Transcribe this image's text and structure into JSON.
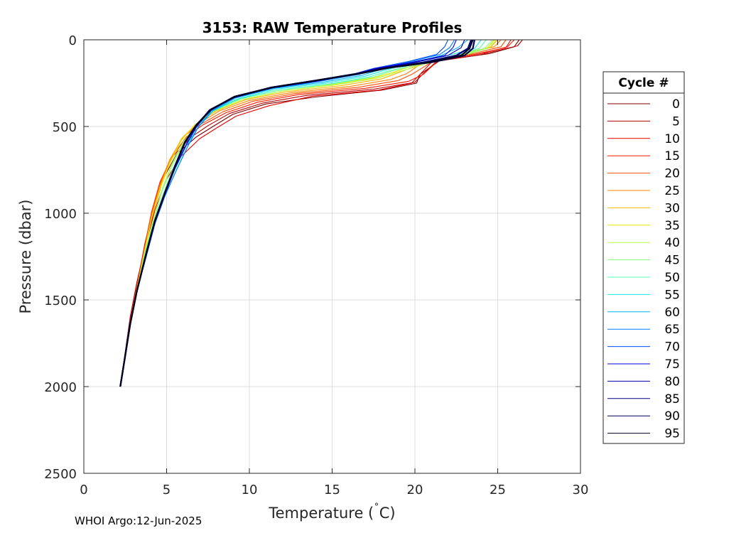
{
  "chart_data": {
    "type": "line",
    "title": "3153: RAW Temperature Profiles",
    "xlabel": "Temperature (",
    "xlabel_degree": "˚",
    "xlabel_unit": "C)",
    "ylabel": "Pressure (dbar)",
    "xlim": [
      0,
      30
    ],
    "ylim": [
      0,
      2500
    ],
    "y_reversed": true,
    "grid": true,
    "x_ticks": [
      "0",
      "5",
      "10",
      "15",
      "20",
      "25",
      "30"
    ],
    "y_ticks": [
      "0",
      "500",
      "1000",
      "1500",
      "2000",
      "2500"
    ],
    "legend": {
      "title": "Cycle #",
      "placement": "right-outside",
      "entries": [
        "0",
        "5",
        "10",
        "15",
        "20",
        "25",
        "30",
        "35",
        "40",
        "45",
        "50",
        "55",
        "60",
        "65",
        "70",
        "75",
        "80",
        "85",
        "90",
        "95"
      ],
      "colors": [
        "#800000",
        "#b30000",
        "#e60000",
        "#ff1a00",
        "#ff4d00",
        "#ff8000",
        "#ffb300",
        "#e6e600",
        "#b3ff4d",
        "#80ff80",
        "#4dffb3",
        "#1ae6e6",
        "#00b3ff",
        "#0080ff",
        "#004dff",
        "#0000e6",
        "#0000b3",
        "#000080",
        "#000050",
        "#000020"
      ]
    },
    "series": [
      {
        "x": [
          26.3,
          26.0,
          24.5,
          21.5,
          20.3,
          20.1,
          18.0,
          14.0,
          11.0,
          9.0,
          7.8,
          6.8,
          5.6,
          4.8,
          4.3,
          3.8,
          3.2,
          2.8,
          2.5,
          2.2
        ],
        "y": [
          0,
          40,
          80,
          120,
          200,
          250,
          290,
          330,
          370,
          430,
          500,
          560,
          660,
          800,
          960,
          1150,
          1400,
          1600,
          1800,
          2000
        ]
      },
      {
        "x": [
          26.5,
          26.2,
          24.0,
          21.3,
          20.4,
          20.0,
          17.5,
          13.5,
          10.8,
          8.8,
          7.5,
          6.5,
          5.4,
          4.7,
          4.2,
          3.7,
          3.2,
          2.8,
          2.5,
          2.2
        ],
        "y": [
          0,
          35,
          85,
          125,
          205,
          245,
          285,
          320,
          365,
          425,
          495,
          560,
          670,
          810,
          980,
          1170,
          1420,
          1620,
          1820,
          2000
        ]
      },
      {
        "x": [
          25.8,
          25.5,
          23.8,
          21.0,
          20.2,
          19.8,
          17.8,
          13.8,
          11.2,
          9.2,
          8.0,
          7.0,
          5.8,
          4.9,
          4.3,
          3.8,
          3.2,
          2.8,
          2.5,
          2.2
        ],
        "y": [
          0,
          45,
          80,
          130,
          210,
          250,
          290,
          325,
          380,
          440,
          510,
          570,
          680,
          820,
          980,
          1160,
          1410,
          1610,
          1810,
          2000
        ]
      },
      {
        "x": [
          26.0,
          25.6,
          24.2,
          21.4,
          20.5,
          19.6,
          17.0,
          13.0,
          10.5,
          8.6,
          7.2,
          6.2,
          5.3,
          4.6,
          4.1,
          3.7,
          3.2,
          2.8,
          2.5,
          2.2
        ],
        "y": [
          0,
          40,
          75,
          120,
          200,
          240,
          280,
          315,
          360,
          420,
          490,
          560,
          680,
          820,
          990,
          1180,
          1420,
          1620,
          1820,
          2000
        ]
      },
      {
        "x": [
          25.5,
          25.2,
          23.5,
          21.0,
          19.8,
          19.0,
          16.5,
          12.8,
          10.2,
          8.4,
          7.0,
          6.0,
          5.2,
          4.6,
          4.1,
          3.7,
          3.2,
          2.8,
          2.5,
          2.2
        ],
        "y": [
          0,
          40,
          80,
          130,
          200,
          235,
          275,
          310,
          355,
          415,
          490,
          560,
          690,
          830,
          1000,
          1190,
          1430,
          1630,
          1820,
          2000
        ]
      },
      {
        "x": [
          25.2,
          24.8,
          23.0,
          20.5,
          19.5,
          18.5,
          16.0,
          12.5,
          10.0,
          8.2,
          6.9,
          6.0,
          5.2,
          4.6,
          4.1,
          3.7,
          3.2,
          2.8,
          2.5,
          2.2
        ],
        "y": [
          0,
          40,
          80,
          130,
          195,
          230,
          270,
          305,
          350,
          410,
          485,
          560,
          690,
          840,
          1010,
          1200,
          1430,
          1630,
          1820,
          2000
        ]
      },
      {
        "x": [
          25.0,
          24.6,
          22.8,
          20.6,
          19.0,
          18.0,
          15.5,
          12.2,
          9.8,
          8.0,
          6.8,
          5.9,
          5.2,
          4.6,
          4.1,
          3.7,
          3.2,
          2.8,
          2.5,
          2.2
        ],
        "y": [
          0,
          40,
          85,
          130,
          190,
          225,
          265,
          300,
          345,
          410,
          485,
          570,
          700,
          850,
          1020,
          1200,
          1440,
          1630,
          1820,
          2000
        ]
      },
      {
        "x": [
          24.8,
          24.4,
          22.5,
          20.4,
          18.8,
          17.5,
          15.0,
          12.0,
          9.6,
          7.9,
          6.7,
          5.9,
          5.2,
          4.6,
          4.1,
          3.7,
          3.2,
          2.8,
          2.5,
          2.2
        ],
        "y": [
          0,
          45,
          90,
          130,
          185,
          220,
          260,
          295,
          345,
          410,
          490,
          580,
          710,
          860,
          1030,
          1210,
          1440,
          1630,
          1820,
          2000
        ]
      },
      {
        "x": [
          24.9,
          24.5,
          22.8,
          20.8,
          19.0,
          17.8,
          15.2,
          12.0,
          9.6,
          7.9,
          6.8,
          6.0,
          5.3,
          4.7,
          4.2,
          3.7,
          3.2,
          2.8,
          2.5,
          2.2
        ],
        "y": [
          0,
          45,
          95,
          135,
          185,
          220,
          260,
          295,
          345,
          410,
          495,
          590,
          720,
          870,
          1040,
          1220,
          1440,
          1630,
          1820,
          2000
        ]
      },
      {
        "x": [
          24.7,
          24.2,
          22.6,
          20.6,
          18.6,
          17.5,
          15.0,
          11.8,
          9.5,
          7.8,
          6.8,
          6.0,
          5.3,
          4.7,
          4.2,
          3.7,
          3.2,
          2.8,
          2.5,
          2.2
        ],
        "y": [
          0,
          50,
          95,
          135,
          180,
          215,
          255,
          290,
          340,
          410,
          500,
          600,
          730,
          880,
          1050,
          1230,
          1450,
          1630,
          1820,
          2000
        ]
      },
      {
        "x": [
          24.3,
          23.9,
          22.3,
          20.2,
          18.4,
          17.2,
          14.8,
          11.8,
          9.4,
          7.8,
          6.8,
          6.1,
          5.4,
          4.8,
          4.2,
          3.7,
          3.2,
          2.8,
          2.5,
          2.2
        ],
        "y": [
          0,
          50,
          95,
          135,
          180,
          215,
          255,
          290,
          340,
          410,
          500,
          600,
          740,
          890,
          1060,
          1240,
          1450,
          1640,
          1820,
          2000
        ]
      },
      {
        "x": [
          24.0,
          23.6,
          22.0,
          20.0,
          18.2,
          17.0,
          14.6,
          11.6,
          9.3,
          7.8,
          6.9,
          6.2,
          5.5,
          4.8,
          4.2,
          3.7,
          3.2,
          2.8,
          2.5,
          2.2
        ],
        "y": [
          0,
          50,
          90,
          130,
          175,
          210,
          250,
          285,
          340,
          410,
          505,
          610,
          750,
          900,
          1060,
          1240,
          1450,
          1640,
          1820,
          2000
        ]
      },
      {
        "x": [
          23.2,
          22.6,
          21.6,
          20.0,
          18.0,
          16.8,
          14.4,
          11.5,
          9.2,
          7.8,
          6.9,
          6.3,
          5.6,
          4.9,
          4.3,
          3.8,
          3.2,
          2.8,
          2.5,
          2.2
        ],
        "y": [
          0,
          45,
          90,
          130,
          170,
          205,
          245,
          280,
          335,
          410,
          505,
          610,
          750,
          900,
          1060,
          1240,
          1450,
          1640,
          1820,
          2000
        ]
      },
      {
        "x": [
          22.4,
          22.1,
          21.5,
          19.8,
          17.8,
          16.6,
          14.2,
          11.4,
          9.1,
          7.7,
          6.9,
          6.3,
          5.6,
          4.9,
          4.3,
          3.8,
          3.2,
          2.8,
          2.5,
          2.2
        ],
        "y": [
          0,
          45,
          85,
          125,
          165,
          200,
          240,
          280,
          335,
          410,
          505,
          610,
          750,
          900,
          1060,
          1240,
          1450,
          1640,
          1820,
          2000
        ]
      },
      {
        "x": [
          22.0,
          21.8,
          21.3,
          19.6,
          17.5,
          16.2,
          14.0,
          11.2,
          9.0,
          7.6,
          6.8,
          6.2,
          5.5,
          4.9,
          4.3,
          3.8,
          3.2,
          2.8,
          2.5,
          2.2
        ],
        "y": [
          0,
          40,
          85,
          125,
          165,
          200,
          240,
          280,
          335,
          410,
          505,
          605,
          745,
          895,
          1055,
          1235,
          1450,
          1640,
          1820,
          2000
        ]
      },
      {
        "x": [
          22.5,
          22.3,
          21.8,
          19.8,
          17.6,
          16.2,
          14.0,
          11.2,
          9.0,
          7.6,
          6.8,
          6.2,
          5.5,
          4.9,
          4.3,
          3.8,
          3.2,
          2.8,
          2.5,
          2.2
        ],
        "y": [
          0,
          45,
          90,
          130,
          165,
          200,
          240,
          280,
          335,
          410,
          500,
          600,
          740,
          890,
          1050,
          1230,
          1450,
          1640,
          1820,
          2000
        ]
      },
      {
        "x": [
          23.0,
          22.8,
          22.0,
          20.0,
          17.8,
          16.4,
          14.0,
          11.3,
          9.0,
          7.6,
          6.8,
          6.1,
          5.5,
          4.9,
          4.3,
          3.8,
          3.2,
          2.8,
          2.5,
          2.2
        ],
        "y": [
          0,
          45,
          90,
          130,
          165,
          198,
          238,
          278,
          330,
          405,
          495,
          595,
          735,
          885,
          1045,
          1225,
          1450,
          1640,
          1820,
          2000
        ]
      },
      {
        "x": [
          23.4,
          23.2,
          22.5,
          20.5,
          18.0,
          16.5,
          14.0,
          11.3,
          9.1,
          7.6,
          6.8,
          6.1,
          5.5,
          4.9,
          4.3,
          3.8,
          3.2,
          2.8,
          2.5,
          2.2
        ],
        "y": [
          0,
          50,
          90,
          130,
          165,
          195,
          235,
          275,
          330,
          405,
          495,
          595,
          735,
          885,
          1045,
          1225,
          1450,
          1640,
          1820,
          2000
        ]
      },
      {
        "x": [
          23.6,
          23.5,
          23.0,
          21.0,
          18.5,
          16.8,
          14.2,
          11.5,
          9.2,
          7.7,
          6.8,
          6.1,
          5.5,
          4.9,
          4.3,
          3.8,
          3.2,
          2.8,
          2.5,
          2.2
        ],
        "y": [
          0,
          50,
          90,
          130,
          160,
          192,
          232,
          272,
          325,
          400,
          490,
          590,
          730,
          880,
          1040,
          1220,
          1450,
          1640,
          1820,
          2000
        ]
      },
      {
        "x": [
          23.5,
          23.3,
          22.8,
          20.8,
          18.4,
          16.7,
          14.1,
          11.4,
          9.1,
          7.7,
          6.8,
          6.1,
          5.5,
          4.9,
          4.3,
          3.8,
          3.2,
          2.8,
          2.5,
          2.2
        ],
        "y": [
          0,
          50,
          90,
          130,
          162,
          194,
          234,
          274,
          328,
          402,
          492,
          592,
          732,
          882,
          1042,
          1222,
          1450,
          1640,
          1820,
          2000
        ]
      }
    ]
  },
  "footer": "WHOI Argo:12-Jun-2025"
}
